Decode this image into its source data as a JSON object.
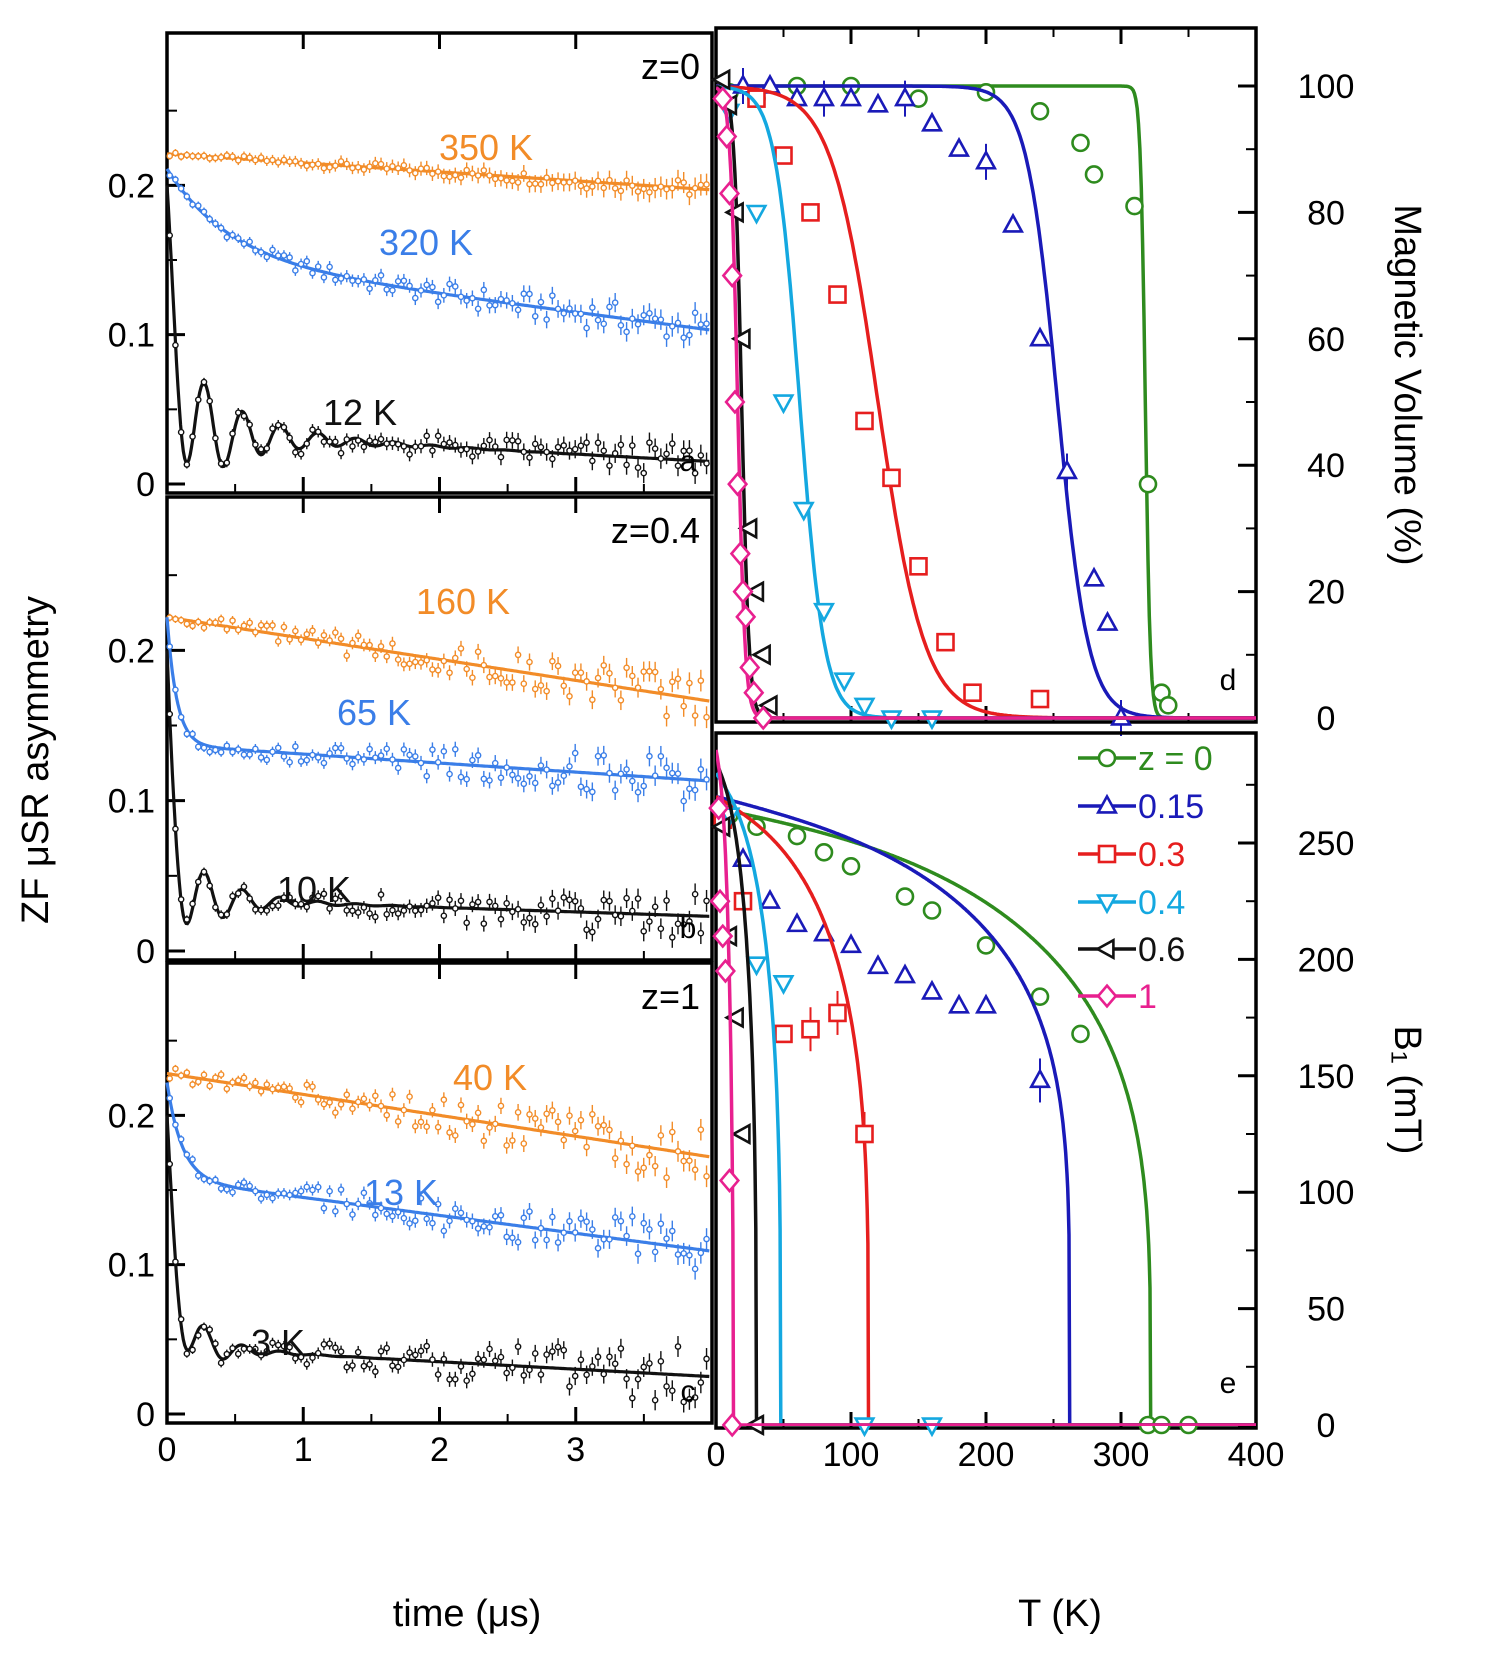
{
  "figure": {
    "left_ylabel": "ZF μSR asymmetry",
    "left_xlabel": "time (μs)",
    "right_xlabel": "T (K)"
  },
  "chart_data": [
    {
      "id": "a",
      "type": "line",
      "panel_label": "a",
      "composition": "z=0",
      "xlim": [
        0,
        4
      ],
      "ylim": [
        0,
        0.3
      ],
      "yticks": [
        "0",
        "0.1",
        "0.2"
      ],
      "xticks": [],
      "series": [
        {
          "name": "350 K",
          "color": "#f28c28",
          "start": 0.221,
          "decay": 0.006,
          "osc_amp": 0,
          "fast_amp": 0,
          "fast_rate": 0,
          "osc_freq": 0,
          "osc_damp": 0
        },
        {
          "name": "320 K",
          "color": "#3a7ee8",
          "start": 0.211,
          "decay": 0.012,
          "osc_amp": 0,
          "fast_amp": 0.06,
          "fast_rate": 2.2,
          "osc_freq": 0,
          "osc_damp": 0
        },
        {
          "name": "12 K",
          "color": "#111111",
          "start": 0.2,
          "decay": 0.005,
          "osc_amp": 0.055,
          "fast_amp": 0.11,
          "fast_rate": 12,
          "osc_freq": 3.6,
          "osc_damp": 2.2
        }
      ]
    },
    {
      "id": "b",
      "type": "line",
      "panel_label": "b",
      "composition": "z=0.4",
      "xlim": [
        0,
        4
      ],
      "ylim": [
        0,
        0.3
      ],
      "yticks": [
        "0",
        "0.1",
        "0.2"
      ],
      "xticks": [],
      "series": [
        {
          "name": "160 K",
          "color": "#f28c28",
          "start": 0.222,
          "decay": 0.014,
          "osc_amp": 0,
          "fast_amp": 0,
          "fast_rate": 0,
          "osc_freq": 0,
          "osc_damp": 0
        },
        {
          "name": "65 K",
          "color": "#3a7ee8",
          "start": 0.222,
          "decay": 0.006,
          "osc_amp": 0,
          "fast_amp": 0.085,
          "fast_rate": 14,
          "osc_freq": 0,
          "osc_damp": 0
        },
        {
          "name": "10 K",
          "color": "#111111",
          "start": 0.2,
          "decay": 0.003,
          "osc_amp": 0.04,
          "fast_amp": 0.125,
          "fast_rate": 18,
          "osc_freq": 3.6,
          "osc_damp": 3.0
        }
      ]
    },
    {
      "id": "c",
      "type": "line",
      "panel_label": "c",
      "composition": "z=1",
      "xlim": [
        0,
        4
      ],
      "ylim": [
        0,
        0.3
      ],
      "yticks": [
        "0",
        "0.1",
        "0.2"
      ],
      "xticks": [
        "0",
        "1",
        "2",
        "3"
      ],
      "series": [
        {
          "name": "40 K",
          "color": "#f28c28",
          "start": 0.228,
          "decay": 0.014,
          "osc_amp": 0,
          "fast_amp": 0,
          "fast_rate": 0,
          "osc_freq": 0,
          "osc_damp": 0
        },
        {
          "name": "13 K",
          "color": "#3a7ee8",
          "start": 0.222,
          "decay": 0.012,
          "osc_amp": 0,
          "fast_amp": 0.065,
          "fast_rate": 9,
          "osc_freq": 0,
          "osc_damp": 0
        },
        {
          "name": "3 K",
          "color": "#111111",
          "start": 0.2,
          "decay": 0.005,
          "osc_amp": 0.035,
          "fast_amp": 0.12,
          "fast_rate": 13,
          "osc_freq": 3.6,
          "osc_damp": 4.0
        }
      ]
    },
    {
      "id": "d",
      "type": "scatter",
      "panel_label": "d",
      "xlim": [
        0,
        400
      ],
      "ylim": [
        0,
        100
      ],
      "yticks": [
        "0",
        "20",
        "40",
        "60",
        "80",
        "100"
      ],
      "ylabel": "Magnetic Volume (%)",
      "series": [
        {
          "name": "z = 0",
          "color": "#2e8b1e",
          "marker": "circle",
          "tc": 318,
          "width": 4,
          "x": [
            10,
            30,
            60,
            100,
            150,
            200,
            240,
            270,
            280,
            310,
            320,
            330,
            335
          ],
          "y": [
            99,
            98,
            100,
            100,
            98,
            99,
            96,
            91,
            86,
            81,
            37,
            4,
            2
          ]
        },
        {
          "name": "0.15",
          "color": "#1a1ab8",
          "marker": "triangle-up",
          "tc": 253,
          "width": 25,
          "x": [
            20,
            40,
            60,
            80,
            100,
            120,
            140,
            160,
            180,
            200,
            220,
            240,
            260,
            280,
            290,
            300
          ],
          "y": [
            100,
            100,
            98,
            98,
            98,
            97,
            98,
            94,
            90,
            88,
            78,
            60,
            39,
            22,
            15,
            0
          ]
        },
        {
          "name": "0.3",
          "color": "#e61e1e",
          "marker": "square",
          "tc": 120,
          "width": 38,
          "x": [
            30,
            50,
            70,
            90,
            110,
            130,
            150,
            170,
            190,
            240
          ],
          "y": [
            98,
            89,
            80,
            67,
            47,
            38,
            24,
            12,
            4,
            3
          ]
        },
        {
          "name": "0.4",
          "color": "#14a8e0",
          "marker": "triangle-down",
          "tc": 62,
          "width": 20,
          "x": [
            10,
            30,
            50,
            65,
            80,
            95,
            110,
            130,
            160
          ],
          "y": [
            96,
            80,
            50,
            33,
            17,
            6,
            2,
            0,
            0
          ]
        },
        {
          "name": "0.6",
          "color": "#111111",
          "marker": "triangle-left",
          "tc": 19,
          "width": 6,
          "x": [
            5,
            10,
            15,
            20,
            25,
            30,
            35,
            40
          ],
          "y": [
            101,
            97,
            80,
            60,
            30,
            20,
            10,
            2
          ]
        },
        {
          "name": "1",
          "color": "#e8208f",
          "marker": "diamond",
          "tc": 16,
          "width": 6,
          "x": [
            5,
            8,
            10,
            12,
            14,
            16,
            18,
            20,
            22,
            25,
            28,
            35
          ],
          "y": [
            98,
            92,
            83,
            70,
            50,
            37,
            26,
            20,
            16,
            8,
            4,
            0
          ]
        }
      ]
    },
    {
      "id": "e",
      "type": "scatter",
      "panel_label": "e",
      "xlim": [
        0,
        400
      ],
      "ylim": [
        0,
        300
      ],
      "yticks": [
        "0",
        "50",
        "100",
        "150",
        "200",
        "250"
      ],
      "xticks": [
        "0",
        "100",
        "200",
        "300",
        "400"
      ],
      "ylabel": "B₁ (mT)",
      "series": [
        {
          "name": "z = 0",
          "color": "#2e8b1e",
          "marker": "circle",
          "b0": 265,
          "beta": 0.25,
          "tcB": 322,
          "x": [
            10,
            30,
            60,
            80,
            100,
            140,
            160,
            200,
            240,
            270,
            320,
            330,
            350
          ],
          "y": [
            262,
            257,
            253,
            246,
            240,
            227,
            221,
            206,
            184,
            168,
            0,
            0,
            0
          ]
        },
        {
          "name": "0.15",
          "color": "#1a1ab8",
          "marker": "triangle-up",
          "b0": 270,
          "beta": 0.2,
          "tcB": 262,
          "x": [
            20,
            40,
            60,
            80,
            100,
            120,
            140,
            160,
            180,
            200,
            240
          ],
          "y": [
            243,
            225,
            215,
            211,
            206,
            197,
            193,
            186,
            180,
            180,
            148
          ]
        },
        {
          "name": "0.3",
          "color": "#e61e1e",
          "marker": "square",
          "b0": 270,
          "beta": 0.25,
          "tcB": 113,
          "x": [
            5,
            20,
            50,
            70,
            90,
            110
          ],
          "y": [
            260,
            225,
            168,
            170,
            177,
            125
          ]
        },
        {
          "name": "0.4",
          "color": "#14a8e0",
          "marker": "triangle-down",
          "b0": 280,
          "beta": 0.3,
          "tcB": 48,
          "x": [
            10,
            30,
            50,
            110,
            160
          ],
          "y": [
            262,
            198,
            190,
            0,
            0
          ]
        },
        {
          "name": "0.6",
          "color": "#111111",
          "marker": "triangle-left",
          "b0": 285,
          "beta": 0.35,
          "tcB": 30,
          "x": [
            5,
            10,
            15,
            20,
            30
          ],
          "y": [
            257,
            210,
            175,
            125,
            0
          ]
        },
        {
          "name": "1",
          "color": "#e8208f",
          "marker": "diamond",
          "b0": 290,
          "beta": 0.5,
          "tcB": 13,
          "x": [
            2,
            3,
            5,
            7,
            10,
            12
          ],
          "y": [
            265,
            225,
            210,
            195,
            105,
            0
          ]
        }
      ]
    }
  ]
}
